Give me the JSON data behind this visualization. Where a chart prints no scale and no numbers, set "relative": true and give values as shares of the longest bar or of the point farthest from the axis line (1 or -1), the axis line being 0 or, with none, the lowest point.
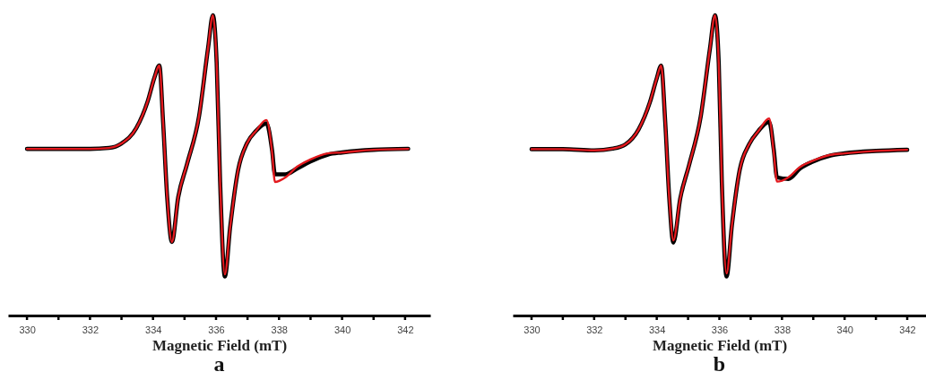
{
  "chart_data": [
    {
      "type": "line",
      "title": "a",
      "xlabel": "Magnetic Field (mT)",
      "relative": true,
      "xlim": [
        329.4,
        342.8
      ],
      "xticks": [
        330,
        {
          "value": 331,
          "label": null
        },
        332,
        {
          "value": 333,
          "label": null
        },
        334,
        {
          "value": 335,
          "label": null
        },
        336,
        {
          "value": 337,
          "label": null
        },
        338,
        {
          "value": 339,
          "label": null
        },
        340,
        {
          "value": 341,
          "label": null
        },
        342
      ],
      "x": [
        330,
        331,
        332,
        332.6,
        333,
        333.47,
        333.83,
        334.05,
        334.2,
        334.32,
        334.45,
        334.6,
        334.8,
        335.08,
        335.46,
        335.75,
        335.9,
        336.02,
        336.13,
        336.28,
        336.45,
        336.7,
        336.98,
        337.27,
        337.6,
        337.78,
        337.87,
        338.2,
        338.58,
        338.98,
        339.55,
        340,
        341,
        342.1
      ],
      "series": [
        {
          "color": "#000000",
          "values": [
            0.555,
            0.555,
            0.555,
            0.558,
            0.573,
            0.624,
            0.713,
            0.794,
            0.833,
            0.645,
            0.394,
            0.245,
            0.394,
            0.504,
            0.663,
            0.893,
            1,
            0.842,
            0.445,
            0.13,
            0.296,
            0.484,
            0.573,
            0.615,
            0.64,
            0.55,
            0.47,
            0.47,
            0.49,
            0.512,
            0.536,
            0.543,
            0.552,
            0.555
          ]
        },
        {
          "color": "#e3191e",
          "values": [
            0.555,
            0.555,
            0.555,
            0.558,
            0.573,
            0.624,
            0.713,
            0.794,
            0.833,
            0.645,
            0.394,
            0.245,
            0.394,
            0.504,
            0.663,
            0.893,
            1,
            0.842,
            0.445,
            0.137,
            0.296,
            0.484,
            0.573,
            0.615,
            0.651,
            0.543,
            0.445,
            0.46,
            0.496,
            0.519,
            0.54,
            0.543,
            0.552,
            0.555
          ]
        }
      ]
    },
    {
      "type": "line",
      "title": "b",
      "xlabel": "Magnetic Field (mT)",
      "relative": true,
      "xlim": [
        329.4,
        342.6
      ],
      "xticks": [
        330,
        {
          "value": 331,
          "label": null
        },
        332,
        {
          "value": 333,
          "label": null
        },
        334,
        {
          "value": 335,
          "label": null
        },
        336,
        {
          "value": 337,
          "label": null
        },
        338,
        {
          "value": 339,
          "label": null
        },
        340,
        {
          "value": 341,
          "label": null
        },
        342
      ],
      "x": [
        330,
        331,
        332,
        332.6,
        333,
        333.42,
        333.78,
        334.0,
        334.14,
        334.27,
        334.4,
        334.53,
        334.75,
        335.03,
        335.4,
        335.7,
        335.86,
        335.98,
        336.08,
        336.23,
        336.4,
        336.65,
        336.95,
        337.25,
        337.59,
        337.74,
        337.84,
        338.2,
        338.58,
        338.98,
        339.55,
        340,
        341,
        342
      ],
      "series": [
        {
          "color": "#000000",
          "values": [
            0.554,
            0.554,
            0.55,
            0.556,
            0.57,
            0.62,
            0.71,
            0.79,
            0.832,
            0.645,
            0.39,
            0.243,
            0.39,
            0.5,
            0.66,
            0.89,
            1,
            0.84,
            0.44,
            0.13,
            0.3,
            0.485,
            0.57,
            0.615,
            0.645,
            0.55,
            0.46,
            0.455,
            0.49,
            0.512,
            0.533,
            0.54,
            0.548,
            0.552
          ]
        },
        {
          "color": "#e3191e",
          "values": [
            0.554,
            0.554,
            0.55,
            0.556,
            0.57,
            0.62,
            0.71,
            0.79,
            0.832,
            0.645,
            0.39,
            0.25,
            0.39,
            0.5,
            0.66,
            0.89,
            1,
            0.84,
            0.44,
            0.14,
            0.3,
            0.485,
            0.57,
            0.615,
            0.656,
            0.54,
            0.446,
            0.46,
            0.495,
            0.515,
            0.535,
            0.54,
            0.548,
            0.552
          ]
        }
      ]
    }
  ]
}
